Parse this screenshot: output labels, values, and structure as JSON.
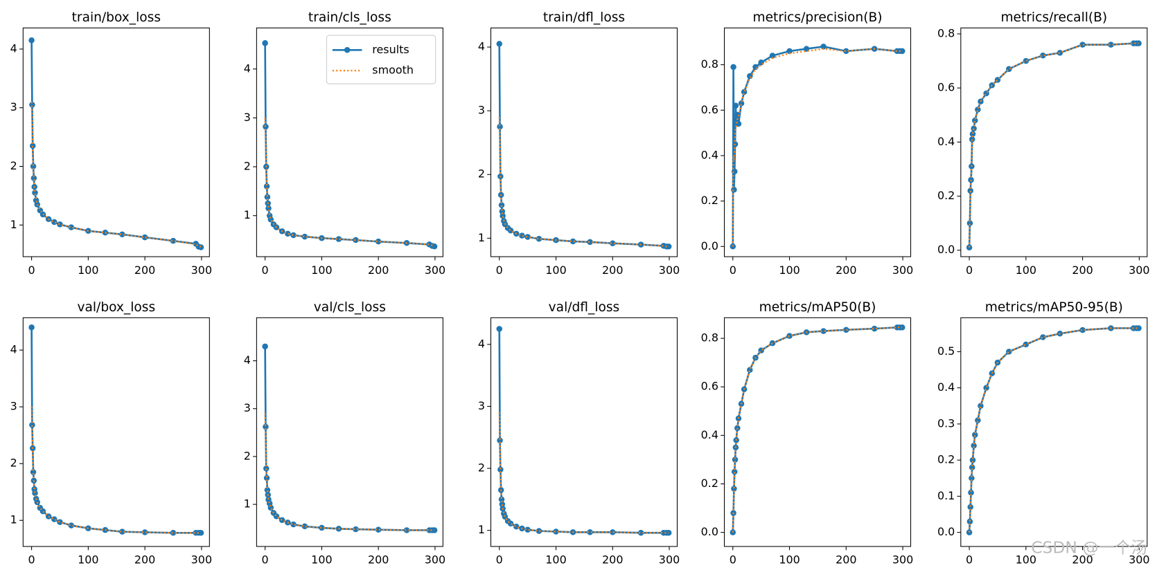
{
  "chart_data": [
    {
      "type": "line",
      "title": "train/box_loss",
      "x": [
        0,
        1,
        2,
        3,
        4,
        5,
        6,
        8,
        10,
        15,
        20,
        30,
        40,
        50,
        70,
        100,
        130,
        160,
        200,
        250,
        290,
        295,
        299
      ],
      "xlim": [
        -15,
        314
      ],
      "xticks": [
        0,
        100,
        200,
        300
      ],
      "ylim": [
        0.46,
        4.36
      ],
      "yticks": [
        1,
        2,
        3,
        4
      ],
      "series": [
        {
          "name": "results",
          "color": "#1f77b4",
          "values": [
            4.15,
            3.05,
            2.35,
            2.0,
            1.8,
            1.65,
            1.55,
            1.42,
            1.35,
            1.25,
            1.18,
            1.1,
            1.05,
            1.01,
            0.96,
            0.9,
            0.87,
            0.84,
            0.79,
            0.73,
            0.68,
            0.63,
            0.62
          ]
        },
        {
          "name": "smooth",
          "color": "#ff7f0e",
          "values": [
            3.1,
            2.8,
            2.3,
            2.0,
            1.8,
            1.65,
            1.55,
            1.43,
            1.36,
            1.26,
            1.19,
            1.1,
            1.05,
            1.01,
            0.96,
            0.9,
            0.87,
            0.84,
            0.79,
            0.73,
            0.67,
            0.64,
            0.63
          ]
        }
      ]
    },
    {
      "type": "line",
      "title": "train/cls_loss",
      "legend": "upper right",
      "x": [
        0,
        1,
        2,
        3,
        4,
        5,
        6,
        8,
        10,
        15,
        20,
        30,
        40,
        50,
        70,
        100,
        130,
        160,
        200,
        250,
        290,
        295,
        299
      ],
      "xlim": [
        -15,
        314
      ],
      "xticks": [
        0,
        100,
        200,
        300
      ],
      "ylim": [
        0.16,
        4.84
      ],
      "yticks": [
        1,
        2,
        3,
        4
      ],
      "series": [
        {
          "name": "results",
          "color": "#1f77b4",
          "values": [
            4.53,
            2.82,
            2.0,
            1.6,
            1.38,
            1.25,
            1.15,
            1.0,
            0.92,
            0.82,
            0.76,
            0.68,
            0.63,
            0.6,
            0.57,
            0.54,
            0.52,
            0.5,
            0.47,
            0.44,
            0.41,
            0.38,
            0.37
          ]
        },
        {
          "name": "smooth",
          "color": "#ff7f0e",
          "values": [
            3.0,
            2.6,
            2.0,
            1.6,
            1.38,
            1.25,
            1.15,
            1.01,
            0.93,
            0.83,
            0.76,
            0.68,
            0.63,
            0.6,
            0.57,
            0.54,
            0.52,
            0.5,
            0.47,
            0.44,
            0.41,
            0.39,
            0.38
          ]
        }
      ]
    },
    {
      "type": "line",
      "title": "train/dfl_loss",
      "x": [
        0,
        1,
        2,
        3,
        4,
        5,
        6,
        8,
        10,
        15,
        20,
        30,
        40,
        50,
        70,
        100,
        130,
        160,
        200,
        250,
        290,
        295,
        299
      ],
      "xlim": [
        -15,
        314
      ],
      "xticks": [
        0,
        100,
        200,
        300
      ],
      "ylim": [
        0.71,
        4.3
      ],
      "yticks": [
        1,
        2,
        3,
        4
      ],
      "series": [
        {
          "name": "results",
          "color": "#1f77b4",
          "values": [
            4.05,
            2.75,
            1.97,
            1.68,
            1.52,
            1.42,
            1.35,
            1.27,
            1.22,
            1.16,
            1.12,
            1.07,
            1.04,
            1.02,
            0.99,
            0.97,
            0.95,
            0.94,
            0.92,
            0.9,
            0.88,
            0.87,
            0.87
          ]
        },
        {
          "name": "smooth",
          "color": "#ff7f0e",
          "values": [
            2.9,
            2.55,
            1.97,
            1.68,
            1.52,
            1.42,
            1.35,
            1.28,
            1.23,
            1.16,
            1.12,
            1.07,
            1.04,
            1.02,
            0.99,
            0.97,
            0.95,
            0.94,
            0.92,
            0.9,
            0.88,
            0.87,
            0.87
          ]
        }
      ]
    },
    {
      "type": "line",
      "title": "metrics/precision(B)",
      "x": [
        0,
        1,
        2,
        3,
        4,
        5,
        6,
        8,
        10,
        15,
        20,
        30,
        40,
        50,
        70,
        100,
        130,
        160,
        200,
        250,
        290,
        295,
        299
      ],
      "xlim": [
        -15,
        314
      ],
      "xticks": [
        0,
        100,
        200,
        300
      ],
      "ylim": [
        -0.045,
        0.962
      ],
      "yticks": [
        {
          "value": 0,
          "label": "0.0"
        },
        0.2,
        0.4,
        0.6,
        0.8
      ],
      "series": [
        {
          "name": "results",
          "color": "#1f77b4",
          "values": [
            0.0,
            0.79,
            0.25,
            0.33,
            0.45,
            0.62,
            0.55,
            0.58,
            0.54,
            0.63,
            0.68,
            0.75,
            0.79,
            0.81,
            0.84,
            0.86,
            0.87,
            0.88,
            0.86,
            0.87,
            0.86,
            0.86,
            0.86
          ]
        },
        {
          "name": "smooth",
          "color": "#ff7f0e",
          "values": [
            0.0,
            0.4,
            0.38,
            0.42,
            0.5,
            0.52,
            0.53,
            0.56,
            0.57,
            0.63,
            0.68,
            0.74,
            0.78,
            0.8,
            0.83,
            0.85,
            0.86,
            0.87,
            0.86,
            0.87,
            0.86,
            0.86,
            0.86
          ]
        }
      ]
    },
    {
      "type": "line",
      "title": "metrics/recall(B)",
      "x": [
        0,
        1,
        2,
        3,
        4,
        5,
        6,
        8,
        10,
        15,
        20,
        30,
        40,
        50,
        70,
        100,
        130,
        160,
        200,
        250,
        290,
        295,
        299
      ],
      "xlim": [
        -15,
        314
      ],
      "xticks": [
        0,
        100,
        200,
        300
      ],
      "ylim": [
        -0.024,
        0.822
      ],
      "yticks": [
        {
          "value": 0,
          "label": "0.0"
        },
        0.2,
        0.4,
        0.6,
        0.8
      ],
      "series": [
        {
          "name": "results",
          "color": "#1f77b4",
          "values": [
            0.01,
            0.1,
            0.22,
            0.26,
            0.31,
            0.41,
            0.43,
            0.45,
            0.48,
            0.52,
            0.55,
            0.58,
            0.61,
            0.63,
            0.67,
            0.7,
            0.72,
            0.73,
            0.76,
            0.76,
            0.765,
            0.765,
            0.765
          ]
        },
        {
          "name": "smooth",
          "color": "#ff7f0e",
          "values": [
            0.01,
            0.15,
            0.2,
            0.25,
            0.31,
            0.4,
            0.43,
            0.45,
            0.48,
            0.52,
            0.55,
            0.58,
            0.61,
            0.63,
            0.67,
            0.7,
            0.72,
            0.73,
            0.76,
            0.76,
            0.765,
            0.765,
            0.765
          ]
        }
      ]
    },
    {
      "type": "line",
      "title": "val/box_loss",
      "x": [
        0,
        1,
        2,
        3,
        4,
        5,
        6,
        8,
        10,
        15,
        20,
        30,
        40,
        50,
        70,
        100,
        130,
        160,
        200,
        250,
        290,
        295,
        299
      ],
      "xlim": [
        -15,
        314
      ],
      "xticks": [
        0,
        100,
        200,
        300
      ],
      "ylim": [
        0.54,
        4.57
      ],
      "yticks": [
        1,
        2,
        3,
        4
      ],
      "series": [
        {
          "name": "results",
          "color": "#1f77b4",
          "values": [
            4.4,
            2.68,
            2.27,
            1.85,
            1.7,
            1.55,
            1.48,
            1.38,
            1.32,
            1.22,
            1.16,
            1.07,
            1.02,
            0.97,
            0.91,
            0.86,
            0.83,
            0.8,
            0.79,
            0.78,
            0.78,
            0.78,
            0.78
          ]
        },
        {
          "name": "smooth",
          "color": "#ff7f0e",
          "values": [
            3.0,
            2.6,
            2.2,
            1.85,
            1.7,
            1.56,
            1.48,
            1.39,
            1.32,
            1.22,
            1.16,
            1.07,
            1.02,
            0.97,
            0.91,
            0.86,
            0.83,
            0.8,
            0.79,
            0.78,
            0.78,
            0.78,
            0.78
          ]
        }
      ]
    },
    {
      "type": "line",
      "title": "val/cls_loss",
      "x": [
        0,
        1,
        2,
        3,
        4,
        5,
        6,
        8,
        10,
        15,
        20,
        30,
        40,
        50,
        70,
        100,
        130,
        160,
        200,
        250,
        290,
        295,
        299
      ],
      "xlim": [
        -15,
        314
      ],
      "xticks": [
        0,
        100,
        200,
        300
      ],
      "ylim": [
        0.12,
        4.9
      ],
      "yticks": [
        1,
        2,
        3,
        4
      ],
      "series": [
        {
          "name": "results",
          "color": "#1f77b4",
          "values": [
            4.3,
            2.62,
            1.75,
            1.55,
            1.3,
            1.2,
            1.1,
            1.02,
            0.93,
            0.82,
            0.75,
            0.67,
            0.62,
            0.58,
            0.54,
            0.51,
            0.49,
            0.48,
            0.47,
            0.46,
            0.46,
            0.46,
            0.46
          ]
        },
        {
          "name": "smooth",
          "color": "#ff7f0e",
          "values": [
            2.9,
            2.5,
            1.75,
            1.55,
            1.31,
            1.2,
            1.1,
            1.02,
            0.94,
            0.82,
            0.75,
            0.67,
            0.62,
            0.58,
            0.54,
            0.51,
            0.49,
            0.48,
            0.47,
            0.46,
            0.46,
            0.46,
            0.46
          ]
        }
      ]
    },
    {
      "type": "line",
      "title": "val/dfl_loss",
      "x": [
        0,
        1,
        2,
        3,
        4,
        5,
        6,
        8,
        10,
        15,
        20,
        30,
        40,
        50,
        70,
        100,
        130,
        160,
        200,
        250,
        290,
        295,
        299
      ],
      "xlim": [
        -15,
        314
      ],
      "xticks": [
        0,
        100,
        200,
        300
      ],
      "ylim": [
        0.74,
        4.43
      ],
      "yticks": [
        1,
        2,
        3,
        4
      ],
      "series": [
        {
          "name": "results",
          "color": "#1f77b4",
          "values": [
            4.25,
            2.45,
            1.98,
            1.65,
            1.5,
            1.42,
            1.35,
            1.27,
            1.22,
            1.15,
            1.11,
            1.06,
            1.03,
            1.01,
            0.99,
            0.98,
            0.97,
            0.97,
            0.97,
            0.96,
            0.96,
            0.96,
            0.96
          ]
        },
        {
          "name": "smooth",
          "color": "#ff7f0e",
          "values": [
            2.9,
            2.5,
            1.98,
            1.65,
            1.5,
            1.42,
            1.35,
            1.28,
            1.22,
            1.15,
            1.11,
            1.06,
            1.03,
            1.01,
            0.99,
            0.98,
            0.97,
            0.97,
            0.97,
            0.96,
            0.96,
            0.96,
            0.96
          ]
        }
      ]
    },
    {
      "type": "line",
      "title": "metrics/mAP50(B)",
      "x": [
        0,
        1,
        2,
        3,
        4,
        5,
        6,
        8,
        10,
        15,
        20,
        30,
        40,
        50,
        70,
        100,
        130,
        160,
        200,
        250,
        290,
        295,
        299
      ],
      "xlim": [
        -15,
        314
      ],
      "xticks": [
        0,
        100,
        200,
        300
      ],
      "ylim": [
        -0.058,
        0.885
      ],
      "yticks": [
        {
          "value": 0,
          "label": "0.0"
        },
        0.2,
        0.4,
        0.6,
        0.8
      ],
      "series": [
        {
          "name": "results",
          "color": "#1f77b4",
          "values": [
            0.0,
            0.08,
            0.18,
            0.25,
            0.3,
            0.35,
            0.38,
            0.43,
            0.47,
            0.53,
            0.59,
            0.67,
            0.72,
            0.75,
            0.78,
            0.81,
            0.825,
            0.83,
            0.835,
            0.84,
            0.845,
            0.845,
            0.845
          ]
        },
        {
          "name": "smooth",
          "color": "#ff7f0e",
          "values": [
            0.0,
            0.08,
            0.17,
            0.24,
            0.3,
            0.35,
            0.38,
            0.43,
            0.47,
            0.53,
            0.59,
            0.67,
            0.72,
            0.75,
            0.78,
            0.81,
            0.825,
            0.83,
            0.835,
            0.84,
            0.845,
            0.845,
            0.845
          ]
        }
      ]
    },
    {
      "type": "line",
      "title": "metrics/mAP50-95(B)",
      "x": [
        0,
        1,
        2,
        3,
        4,
        5,
        6,
        8,
        10,
        15,
        20,
        30,
        40,
        50,
        70,
        100,
        130,
        160,
        200,
        250,
        290,
        295,
        299
      ],
      "xlim": [
        -15,
        314
      ],
      "xticks": [
        0,
        100,
        200,
        300
      ],
      "ylim": [
        -0.039,
        0.594
      ],
      "yticks": [
        {
          "value": 0,
          "label": "0.0"
        },
        0.1,
        0.2,
        0.3,
        0.4,
        0.5
      ],
      "series": [
        {
          "name": "results",
          "color": "#1f77b4",
          "values": [
            0.0,
            0.03,
            0.07,
            0.11,
            0.15,
            0.18,
            0.2,
            0.24,
            0.27,
            0.31,
            0.35,
            0.4,
            0.44,
            0.47,
            0.5,
            0.52,
            0.54,
            0.55,
            0.56,
            0.565,
            0.565,
            0.565,
            0.565
          ]
        },
        {
          "name": "smooth",
          "color": "#ff7f0e",
          "values": [
            0.0,
            0.03,
            0.07,
            0.11,
            0.15,
            0.18,
            0.2,
            0.24,
            0.27,
            0.31,
            0.35,
            0.4,
            0.44,
            0.47,
            0.5,
            0.52,
            0.54,
            0.55,
            0.56,
            0.565,
            0.565,
            0.565,
            0.565
          ]
        }
      ]
    }
  ],
  "watermark": "CSDN @一个汤"
}
